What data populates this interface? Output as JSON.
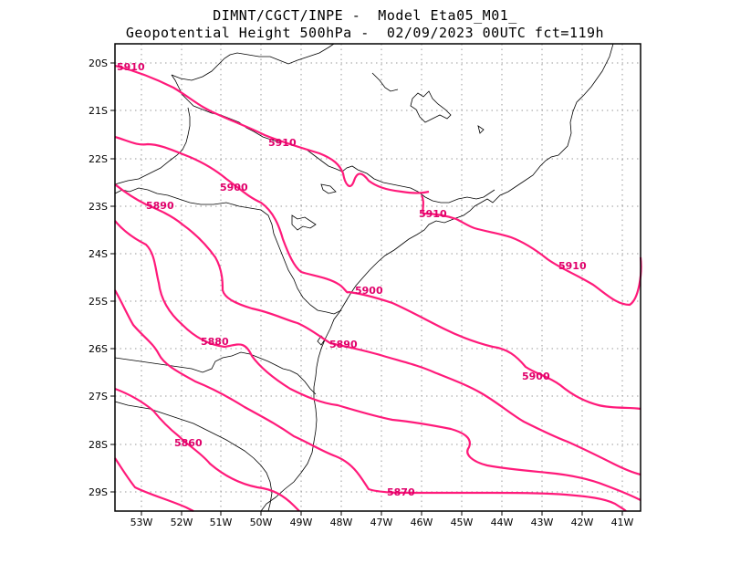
{
  "title": {
    "line1": "DIMNT/CGCT/INPE -  Model Eta05_M01_",
    "line2": "Geopotential Height 500hPa -  02/09/2023 00UTC fct=119h"
  },
  "colors": {
    "contour": "#ff1a7a",
    "label": "#e0006a",
    "coast": "#000000",
    "grid": "#999999"
  },
  "lon_ticks": [
    "53W",
    "52W",
    "51W",
    "50W",
    "49W",
    "48W",
    "47W",
    "46W",
    "45W",
    "44W",
    "43W",
    "42W",
    "41W"
  ],
  "lat_ticks": [
    "20S",
    "21S",
    "22S",
    "23S",
    "24S",
    "25S",
    "26S",
    "27S",
    "28S",
    "29S"
  ],
  "contour_labels": [
    {
      "text": "5910"
    },
    {
      "text": "5910"
    },
    {
      "text": "5910"
    },
    {
      "text": "5910"
    },
    {
      "text": "5900"
    },
    {
      "text": "5900"
    },
    {
      "text": "5900"
    },
    {
      "text": "5890"
    },
    {
      "text": "5890"
    },
    {
      "text": "5880"
    },
    {
      "text": "5870"
    },
    {
      "text": "5860"
    }
  ]
}
